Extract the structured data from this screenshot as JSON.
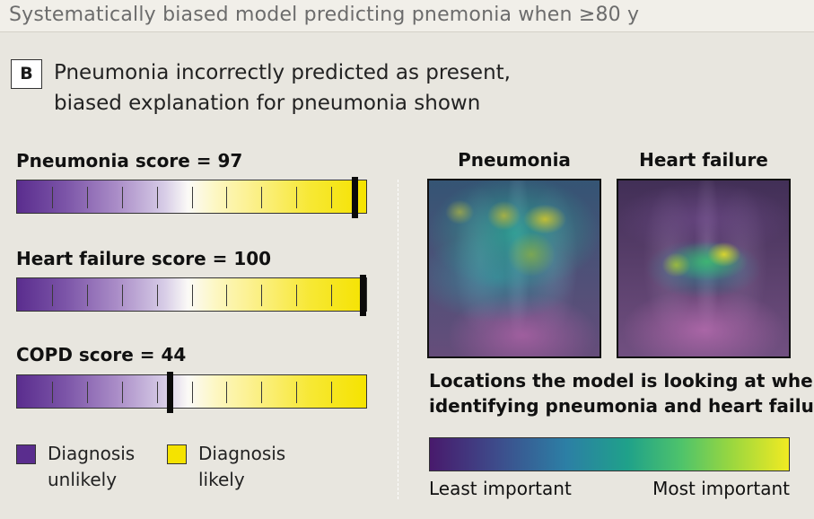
{
  "header": {
    "title": "Systematically biased model predicting pnemonia when ≥80 y"
  },
  "panel": {
    "badge": "B",
    "caption_line1": "Pneumonia incorrectly predicted as present,",
    "caption_line2": "biased explanation for pneumonia shown"
  },
  "scores": [
    {
      "label": "Pneumonia score = 97",
      "value": 97
    },
    {
      "label": "Heart failure score = 100",
      "value": 100
    },
    {
      "label": "COPD score = 44",
      "value": 44
    }
  ],
  "score_scale": {
    "min": 0,
    "max": 100,
    "ticks": 10
  },
  "legend": {
    "unlikely_line1": "Diagnosis",
    "unlikely_line2": "unlikely",
    "likely_line1": "Diagnosis",
    "likely_line2": "likely",
    "unlikely_color": "#5a2d8e",
    "likely_color": "#f5e300"
  },
  "xrays": [
    {
      "title": "Pneumonia"
    },
    {
      "title": "Heart failure"
    }
  ],
  "locations": {
    "line1": "Locations the model is looking at when",
    "line2": "identifying pneumonia and heart failure:"
  },
  "importance": {
    "low_label": "Least important",
    "high_label": "Most important"
  }
}
